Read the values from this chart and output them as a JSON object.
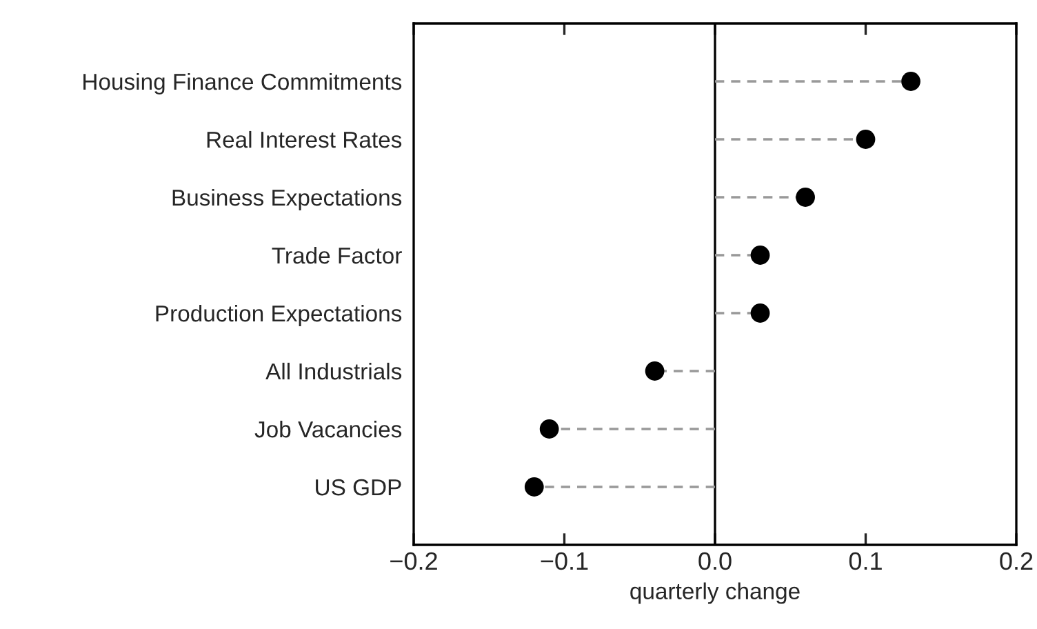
{
  "chart_data": {
    "type": "lollipop",
    "orientation": "horizontal",
    "categories": [
      "Housing Finance Commitments",
      "Real Interest Rates",
      "Business Expectations",
      "Trade Factor",
      "Production Expectations",
      "All Industrials",
      "Job Vacancies",
      "US GDP"
    ],
    "series": [
      {
        "color": "#000000",
        "values": [
          0.13,
          0.1,
          0.06,
          0.03,
          0.03,
          -0.04,
          -0.11,
          -0.12
        ]
      }
    ],
    "xlabel": "quarterly change",
    "xlim": [
      -0.2,
      0.2
    ],
    "xticks": [
      {
        "value": -0.2,
        "label": "−0.2"
      },
      {
        "value": -0.1,
        "label": "−0.1"
      },
      {
        "value": 0.0,
        "label": "0.0"
      },
      {
        "value": 0.1,
        "label": "0.1"
      },
      {
        "value": 0.2,
        "label": "0.2"
      }
    ],
    "ref_lines": [
      {
        "axis": "x",
        "value": 0,
        "color": "#000000",
        "line_style": "solid"
      }
    ],
    "marker": "circle",
    "line_style": "dashed",
    "grid": false,
    "legend": false
  }
}
